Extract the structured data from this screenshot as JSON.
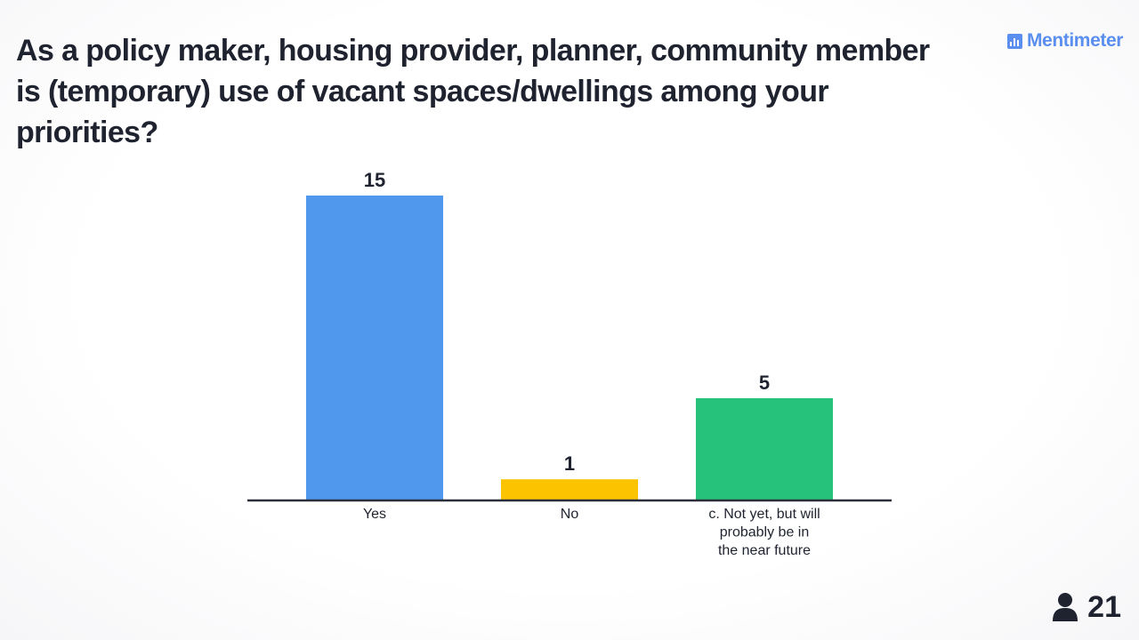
{
  "question": {
    "text": "As a policy maker, housing provider, planner, community member is (temporary) use of vacant spaces/dwellings among your priorities?"
  },
  "brand": {
    "name": "Mentimeter",
    "icon": "bar-chart-icon",
    "color": "#5a8ff0"
  },
  "participants": {
    "count": "21",
    "icon": "person-icon"
  },
  "chart_data": {
    "type": "bar",
    "categories": [
      "Yes",
      "No",
      "c. Not yet, but will probably be in the near future"
    ],
    "category_lines": [
      [
        "Yes"
      ],
      [
        "No"
      ],
      [
        "c. Not yet, but will",
        "probably be in",
        "the near future"
      ]
    ],
    "values": [
      15,
      1,
      5
    ],
    "colors": [
      "#4f98ee",
      "#fcc400",
      "#26c27c"
    ],
    "grid": false,
    "value_labels": true
  }
}
